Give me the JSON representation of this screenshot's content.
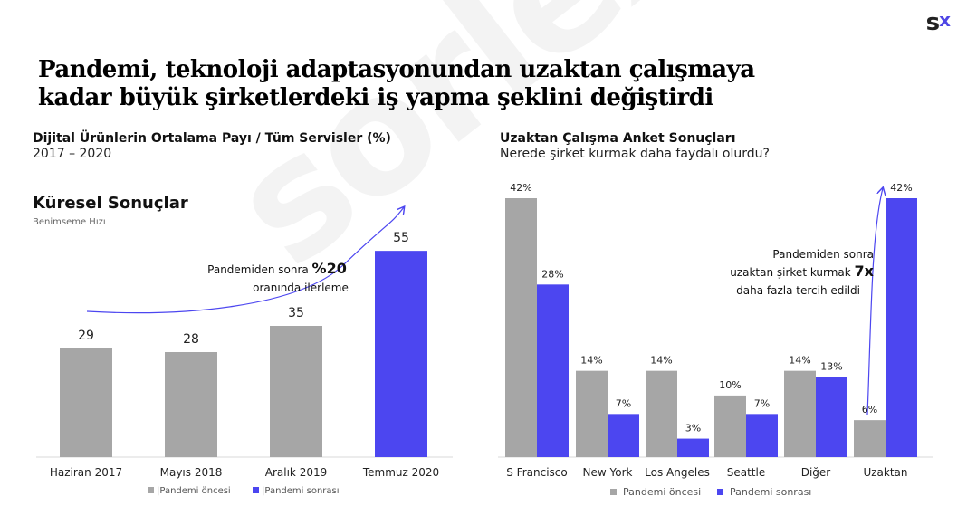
{
  "logo": {
    "main": "s",
    "accent": "x"
  },
  "headline": {
    "line1": "Pandemi, teknoloji adaptasyonundan uzaktan çalışmaya",
    "line2": "kadar büyük şirketlerdeki iş yapma şeklini değiştirdi"
  },
  "left": {
    "subtitle": "Dijital Ürünlerin Ortalama Payı / Tüm Servisler (%)",
    "years": "2017 – 2020",
    "section_title": "Küresel Sonuçlar",
    "section_sub": "Benimseme Hızı",
    "annotation": {
      "prefix": "Pandemiden sonra ",
      "bold": "%20",
      "line2": "oranında ilerleme"
    }
  },
  "right": {
    "subtitle": "Uzaktan Çalışma Anket Sonuçları",
    "question": "Nerede şirket kurmak daha faydalı olurdu?",
    "annotation": {
      "line1": "Pandemiden sonra",
      "line2": "uzaktan şirket kurmak ",
      "bold": "7x",
      "line3": "daha fazla tercih edildi"
    }
  },
  "colors": {
    "before": "#a6a6a6",
    "after": "#4c46f0",
    "axis": "#d9d9d9"
  },
  "chart_data": [
    {
      "type": "bar",
      "categories": [
        "Haziran 2017",
        "Mayıs 2018",
        "Aralık 2019",
        "Temmuz 2020"
      ],
      "values": [
        29,
        28,
        35,
        55
      ],
      "labels": [
        "29",
        "28",
        "35",
        "55"
      ],
      "legend": [
        "|Pandemi öncesi",
        "|Pandemi sonrası"
      ],
      "bar_series": [
        "before",
        "before",
        "before",
        "after"
      ],
      "ylim": [
        0,
        70
      ]
    },
    {
      "type": "bar",
      "categories": [
        "S Francisco",
        "New York",
        "Los Angeles",
        "Seattle",
        "Diğer",
        "Uzaktan"
      ],
      "series": [
        {
          "name": "Pandemi öncesi",
          "values": [
            42,
            14,
            14,
            10,
            14,
            6
          ],
          "labels": [
            "42%",
            "14%",
            "14%",
            "10%",
            "14%",
            "6%"
          ]
        },
        {
          "name": "Pandemi sonrası",
          "values": [
            28,
            7,
            3,
            7,
            13,
            42
          ],
          "labels": [
            "28%",
            "7%",
            "3%",
            "7%",
            "13%",
            "42%"
          ]
        }
      ],
      "ylim": [
        0,
        42
      ]
    }
  ]
}
